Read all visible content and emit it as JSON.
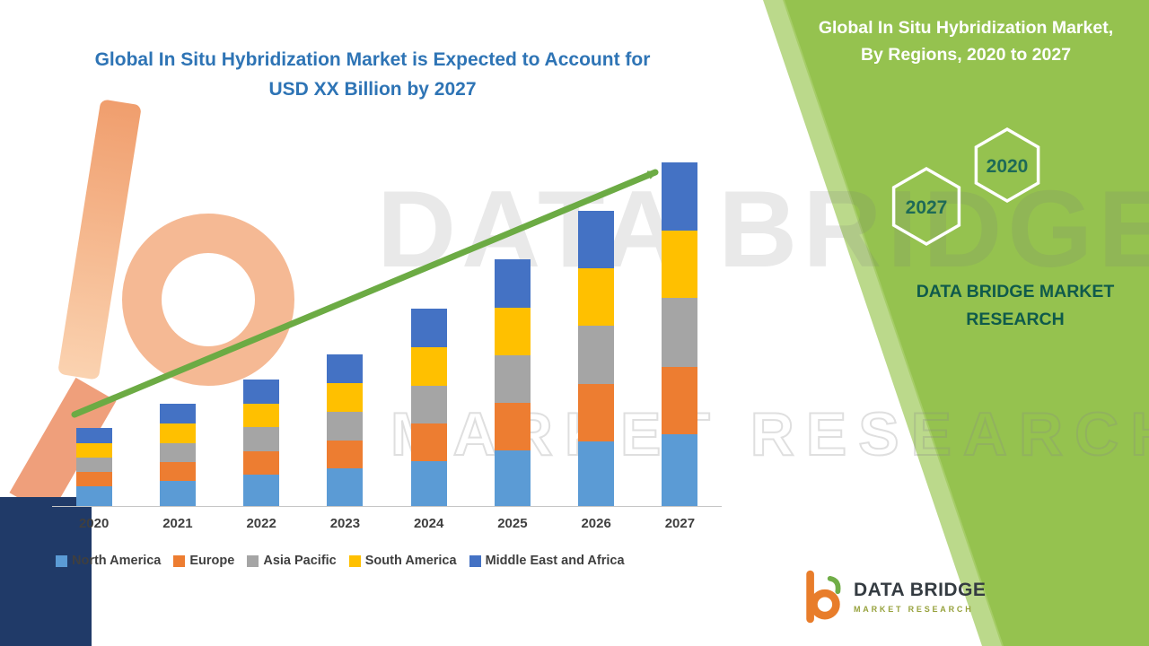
{
  "side_panel": {
    "title_line1": "Global In Situ Hybridization Market,",
    "title_line2": "By Regions, 2020 to 2027",
    "hex_top_label": "2020",
    "hex_bottom_label": "2027",
    "brand_line1": "DATA BRIDGE MARKET",
    "brand_line2": "RESEARCH",
    "panel_color": "#95C24F",
    "edge_color": "#AACF6E"
  },
  "watermark": {
    "line1": "DATA BRIDGE",
    "line2": "MARKET RESEARCH"
  },
  "logo": {
    "line1": "DATA BRIDGE",
    "line2": "MARKET RESEARCH"
  },
  "chart_data": {
    "type": "bar",
    "stacked": true,
    "title": "Global In Situ Hybridization Market is Expected to Account for USD XX Billion by 2027",
    "title_lines": [
      "Global In Situ Hybridization Market is Expected to Account for",
      "USD XX Billion by 2027"
    ],
    "title_color": "#2E74B5",
    "xlabel": "",
    "ylabel": "",
    "ylim": [
      0,
      40
    ],
    "grid": false,
    "y_axis_labels_visible": false,
    "legend_position": "bottom",
    "trend_arrow": {
      "present": true,
      "color": "#6CAB44",
      "direction": "up-right"
    },
    "categories": [
      "2020",
      "2021",
      "2022",
      "2023",
      "2024",
      "2025",
      "2026",
      "2027"
    ],
    "series": [
      {
        "name": "North America",
        "color": "#5B9BD5",
        "values": [
          2.2,
          2.8,
          3.5,
          4.2,
          5.0,
          6.2,
          7.2,
          8.0
        ]
      },
      {
        "name": "Europe",
        "color": "#ED7D31",
        "values": [
          1.6,
          2.1,
          2.6,
          3.1,
          4.2,
          5.3,
          6.4,
          7.5
        ]
      },
      {
        "name": "Asia Pacific",
        "color": "#A5A5A5",
        "values": [
          1.6,
          2.1,
          2.7,
          3.2,
          4.2,
          5.3,
          6.4,
          7.6
        ]
      },
      {
        "name": "South America",
        "color": "#FFC000",
        "values": [
          1.6,
          2.2,
          2.6,
          3.2,
          4.3,
          5.3,
          6.4,
          7.5
        ]
      },
      {
        "name": "Middle East and Africa",
        "color": "#4472C4",
        "values": [
          1.7,
          2.2,
          2.7,
          3.2,
          4.3,
          5.3,
          6.4,
          7.6
        ]
      }
    ],
    "totals": [
      8.7,
      11.4,
      14.1,
      16.9,
      22.0,
      27.4,
      32.8,
      38.2
    ]
  }
}
